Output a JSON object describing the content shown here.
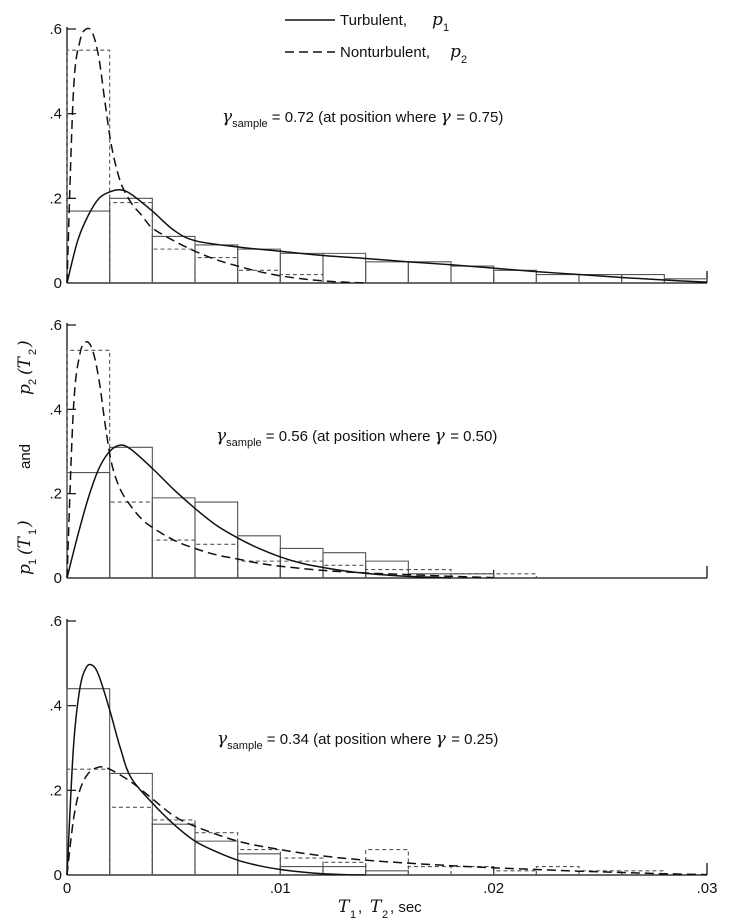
{
  "legend": {
    "turbulent_text": "Turbulent,",
    "turbulent_sym": "p",
    "turbulent_sub": "1",
    "nonturbulent_text": "Nonturbulent,",
    "nonturbulent_sym": "p",
    "nonturbulent_sub": "2"
  },
  "ylabel": {
    "p1": "p",
    "p1_sub": "1",
    "p1_arg": "(T",
    "p1_arg_sub": "1",
    "p1_close": ")",
    "and": "and",
    "p2": "p",
    "p2_sub": "2",
    "p2_arg": "(T",
    "p2_arg_sub": "2",
    "p2_close": ")"
  },
  "xlabel": {
    "t1": "T",
    "t1_sub": "1",
    "sep": ",",
    "t2": "T",
    "t2_sub": "2",
    "unit": ", sec"
  },
  "chart_data": [
    {
      "type": "bar",
      "annotation": {
        "gamma": "γ",
        "sub": "sample",
        "value": "= 0.72 (at position where",
        "gamma2": "γ",
        "value2": "= 0.75)"
      },
      "xlim": [
        0,
        0.03
      ],
      "ylim": [
        0,
        0.6
      ],
      "x_ticks": [
        0,
        0.01,
        0.02,
        0.03
      ],
      "y_ticks": [
        {
          "value": 0,
          "label": "0"
        },
        {
          "value": 0.2,
          "label": ".2"
        },
        {
          "value": 0.4,
          "label": ".4"
        },
        {
          "value": 0.6,
          "label": ".6"
        }
      ],
      "bin_width": 0.002,
      "hist_turbulent": [
        0.17,
        0.2,
        0.11,
        0.09,
        0.08,
        0.07,
        0.07,
        0.05,
        0.05,
        0.04,
        0.03,
        0.02,
        0.02,
        0.02,
        0.01
      ],
      "hist_nonturbulent": [
        0.55,
        0.19,
        0.08,
        0.06,
        0.03,
        0.02,
        0.0,
        0.0,
        0.0,
        0.0,
        0.0,
        0.0,
        0.0,
        0.0,
        0.0
      ],
      "curve_turbulent": {
        "x": [
          0,
          0.0005,
          0.001,
          0.0015,
          0.002,
          0.0025,
          0.003,
          0.004,
          0.005,
          0.006,
          0.008,
          0.01,
          0.012,
          0.014,
          0.016,
          0.018,
          0.02,
          0.022,
          0.024,
          0.026,
          0.028,
          0.03
        ],
        "y": [
          0,
          0.1,
          0.16,
          0.2,
          0.215,
          0.22,
          0.21,
          0.17,
          0.125,
          0.1,
          0.085,
          0.075,
          0.065,
          0.058,
          0.05,
          0.043,
          0.035,
          0.027,
          0.02,
          0.013,
          0.007,
          0.002
        ]
      },
      "curve_nonturbulent": {
        "x": [
          0,
          0.0003,
          0.0006,
          0.0009,
          0.0012,
          0.0015,
          0.0018,
          0.0021,
          0.0025,
          0.003,
          0.0035,
          0.004,
          0.005,
          0.006,
          0.007,
          0.008,
          0.009,
          0.01,
          0.011,
          0.012,
          0.013,
          0.014
        ],
        "y": [
          0,
          0.45,
          0.57,
          0.6,
          0.59,
          0.53,
          0.42,
          0.32,
          0.24,
          0.19,
          0.16,
          0.13,
          0.1,
          0.075,
          0.055,
          0.04,
          0.027,
          0.017,
          0.01,
          0.005,
          0.002,
          0.0
        ]
      }
    },
    {
      "type": "bar",
      "annotation": {
        "gamma": "γ",
        "sub": "sample",
        "value": "= 0.56 (at position where",
        "gamma2": "γ",
        "value2": "= 0.50)"
      },
      "xlim": [
        0,
        0.03
      ],
      "ylim": [
        0,
        0.6
      ],
      "x_ticks": [
        0,
        0.01,
        0.02,
        0.03
      ],
      "y_ticks": [
        {
          "value": 0,
          "label": "0"
        },
        {
          "value": 0.2,
          "label": ".2"
        },
        {
          "value": 0.4,
          "label": ".4"
        },
        {
          "value": 0.6,
          "label": ".6"
        }
      ],
      "bin_width": 0.002,
      "hist_turbulent": [
        0.25,
        0.31,
        0.19,
        0.18,
        0.1,
        0.07,
        0.06,
        0.04,
        0.01,
        0.01,
        0.0,
        0.0,
        0.0,
        0.0,
        0.0
      ],
      "hist_nonturbulent": [
        0.54,
        0.18,
        0.09,
        0.08,
        0.04,
        0.04,
        0.03,
        0.02,
        0.02,
        0.01,
        0.01,
        0.0,
        0.0,
        0.0,
        0.0
      ],
      "curve_turbulent": {
        "x": [
          0,
          0.0005,
          0.001,
          0.0015,
          0.002,
          0.0025,
          0.003,
          0.004,
          0.005,
          0.006,
          0.007,
          0.008,
          0.009,
          0.01,
          0.011,
          0.012,
          0.013,
          0.014,
          0.015,
          0.016,
          0.018
        ],
        "y": [
          0,
          0.1,
          0.19,
          0.26,
          0.3,
          0.315,
          0.305,
          0.26,
          0.21,
          0.165,
          0.125,
          0.095,
          0.07,
          0.05,
          0.035,
          0.025,
          0.017,
          0.011,
          0.007,
          0.004,
          0.0
        ]
      },
      "curve_nonturbulent": {
        "x": [
          0,
          0.0003,
          0.0006,
          0.0009,
          0.0012,
          0.0015,
          0.0018,
          0.0021,
          0.0025,
          0.003,
          0.0035,
          0.004,
          0.005,
          0.006,
          0.007,
          0.008,
          0.009,
          0.01,
          0.012,
          0.014,
          0.016,
          0.018,
          0.02
        ],
        "y": [
          0,
          0.4,
          0.53,
          0.56,
          0.54,
          0.47,
          0.36,
          0.27,
          0.21,
          0.17,
          0.14,
          0.12,
          0.09,
          0.07,
          0.055,
          0.045,
          0.035,
          0.028,
          0.018,
          0.012,
          0.008,
          0.004,
          0.001
        ]
      }
    },
    {
      "type": "bar",
      "annotation": {
        "gamma": "γ",
        "sub": "sample",
        "value": "= 0.34 (at position where",
        "gamma2": "γ",
        "value2": "= 0.25)"
      },
      "xlim": [
        0,
        0.03
      ],
      "ylim": [
        0,
        0.6
      ],
      "x_ticks": [
        {
          "value": 0,
          "label": "0"
        },
        {
          "value": 0.01,
          "label": ".01"
        },
        {
          "value": 0.02,
          "label": ".02"
        },
        {
          "value": 0.03,
          "label": ".03"
        }
      ],
      "y_ticks": [
        {
          "value": 0,
          "label": "0"
        },
        {
          "value": 0.2,
          "label": ".2"
        },
        {
          "value": 0.4,
          "label": ".4"
        },
        {
          "value": 0.6,
          "label": ".6"
        }
      ],
      "bin_width": 0.002,
      "hist_turbulent": [
        0.44,
        0.24,
        0.12,
        0.08,
        0.05,
        0.02,
        0.02,
        0.01,
        0.0,
        0.0,
        0.0,
        0.0,
        0.0,
        0.0,
        0.0
      ],
      "hist_nonturbulent": [
        0.25,
        0.16,
        0.13,
        0.1,
        0.06,
        0.04,
        0.03,
        0.06,
        0.02,
        0.02,
        0.01,
        0.02,
        0.01,
        0.01,
        0.0
      ],
      "curve_turbulent": {
        "x": [
          0,
          0.0003,
          0.0006,
          0.0009,
          0.0012,
          0.0015,
          0.002,
          0.0025,
          0.003,
          0.004,
          0.005,
          0.006,
          0.007,
          0.008,
          0.009,
          0.01,
          0.011,
          0.012,
          0.013,
          0.014
        ],
        "y": [
          0,
          0.3,
          0.44,
          0.49,
          0.495,
          0.47,
          0.39,
          0.3,
          0.23,
          0.17,
          0.12,
          0.08,
          0.055,
          0.035,
          0.022,
          0.013,
          0.007,
          0.003,
          0.001,
          0.0
        ]
      },
      "curve_nonturbulent": {
        "x": [
          0,
          0.0003,
          0.0006,
          0.001,
          0.0015,
          0.002,
          0.003,
          0.004,
          0.005,
          0.006,
          0.008,
          0.01,
          0.012,
          0.014,
          0.016,
          0.018,
          0.02,
          0.022,
          0.024,
          0.026,
          0.028,
          0.03
        ],
        "y": [
          0,
          0.13,
          0.2,
          0.24,
          0.255,
          0.25,
          0.22,
          0.18,
          0.14,
          0.115,
          0.08,
          0.06,
          0.045,
          0.035,
          0.028,
          0.022,
          0.017,
          0.013,
          0.009,
          0.006,
          0.003,
          0.001
        ]
      }
    }
  ]
}
